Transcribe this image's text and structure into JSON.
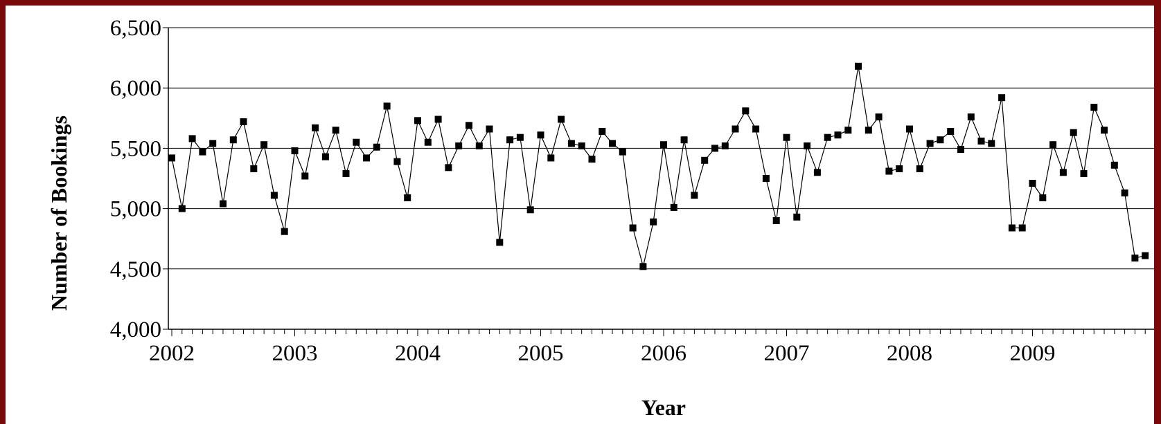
{
  "chart_data": {
    "type": "line",
    "xlabel": "Year",
    "ylabel": "Number of Bookings",
    "ylim": [
      4000,
      6500
    ],
    "yticks": [
      4000,
      4500,
      5000,
      5500,
      6000,
      6500
    ],
    "ytick_labels": [
      "4,000",
      "4,500",
      "5,000",
      "5,500",
      "6,000",
      "6,500"
    ],
    "xtick_labels": [
      "2002",
      "2003",
      "2004",
      "2005",
      "2006",
      "2007",
      "2008",
      "2009"
    ],
    "grid": "horizontal",
    "legend": "none",
    "marker": "square",
    "series_color": "#000000",
    "series": [
      {
        "values": [
          5420,
          5000,
          5580,
          5470,
          5540,
          5040,
          5570,
          5720,
          5330,
          5530,
          5110,
          4810,
          5480,
          5270,
          5670,
          5430,
          5650,
          5290,
          5550,
          5420,
          5510,
          5850,
          5390,
          5090,
          5730,
          5550,
          5740,
          5340,
          5520,
          5690,
          5520,
          5660,
          4720,
          5570,
          5590,
          4990,
          5610,
          5420,
          5740,
          5540,
          5520,
          5410,
          5640,
          5540,
          5470,
          4840,
          4520,
          4890,
          5530,
          5010,
          5570,
          5110,
          5400,
          5500,
          5520,
          5660,
          5810,
          5660,
          5250,
          4900,
          5590,
          4930,
          5520,
          5300,
          5590,
          5610,
          5650,
          6180,
          5650,
          5760,
          5310,
          5330,
          5660,
          5330,
          5540,
          5570,
          5640,
          5490,
          5760,
          5560,
          5540,
          5920,
          4840,
          4840,
          5210,
          5090,
          5530,
          5300,
          5630,
          5290,
          5840,
          5650,
          5360,
          5130,
          4590,
          4610
        ]
      }
    ]
  }
}
